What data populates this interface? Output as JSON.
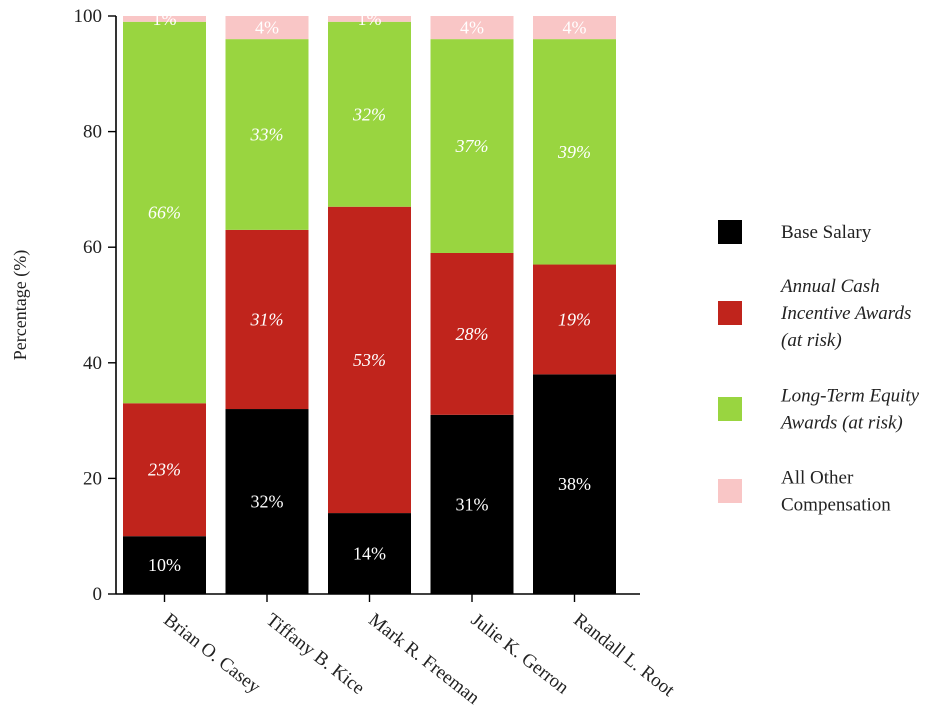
{
  "chart_data": {
    "type": "bar",
    "stacked": true,
    "title": "",
    "xlabel": "",
    "ylabel": "Percentage (%)",
    "ylim": [
      0,
      100
    ],
    "yticks": [
      0,
      20,
      40,
      60,
      80,
      100
    ],
    "legend_position": "right",
    "categories": [
      "Brian O. Casey",
      "Tiffany B. Kice",
      "Mark R. Freeman",
      "Julie K. Gerron",
      "Randall L. Root"
    ],
    "series": [
      {
        "name": "Base Salary",
        "legend_lines": [
          "Base Salary"
        ],
        "italic": false,
        "color": "#000000",
        "label_color": "#ffffff",
        "values": [
          10,
          32,
          14,
          31,
          38
        ],
        "labels": [
          "10%",
          "32%",
          "14%",
          "31%",
          "38%"
        ]
      },
      {
        "name": "Annual Cash Incentive Awards (at risk)",
        "legend_lines": [
          "Annual Cash",
          "Incentive Awards",
          "(at risk)"
        ],
        "italic": true,
        "color": "#c0241c",
        "label_color": "#ffffff",
        "values": [
          23,
          31,
          53,
          28,
          19
        ],
        "labels": [
          "23%",
          "31%",
          "53%",
          "28%",
          "19%"
        ]
      },
      {
        "name": "Long-Term Equity Awards (at risk)",
        "legend_lines": [
          "Long-Term Equity",
          "Awards (at risk)"
        ],
        "italic": true,
        "color": "#99d540",
        "label_color": "#ffffff",
        "values": [
          66,
          33,
          32,
          37,
          39
        ],
        "labels": [
          "66%",
          "33%",
          "32%",
          "37%",
          "39%"
        ]
      },
      {
        "name": "All Other Compensation",
        "legend_lines": [
          "All Other",
          "Compensation"
        ],
        "italic": false,
        "color": "#f9c6c6",
        "label_color": "#ffffff",
        "values": [
          1,
          4,
          1,
          4,
          4
        ],
        "labels": [
          "1%",
          "4%",
          "1%",
          "4%",
          "4%"
        ]
      }
    ]
  }
}
